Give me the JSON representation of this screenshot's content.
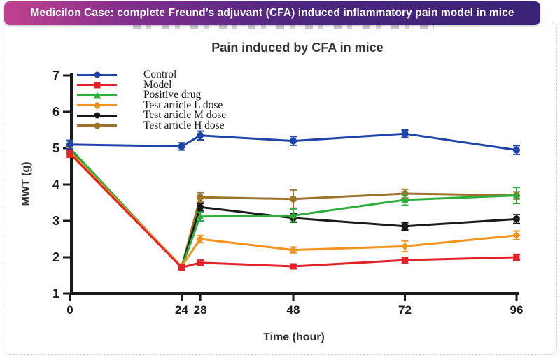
{
  "banner": {
    "title": "Medicilon Case: complete Freund’s adjuvant (CFA) induced inflammatory pain model in mice",
    "gradient_left": "#C2418F",
    "gradient_right": "#3A2374",
    "text_color": "#FFFFFF"
  },
  "chart_data": {
    "type": "line",
    "title": "Pain induced by CFA in mice",
    "xlabel": "Time (hour)",
    "ylabel": "MWT (g)",
    "x": [
      0,
      24,
      28,
      48,
      72,
      96
    ],
    "xticks": [
      0,
      24,
      28,
      48,
      72,
      96
    ],
    "yticks": [
      1,
      2,
      3,
      4,
      5,
      6,
      7
    ],
    "ylim": [
      1,
      7
    ],
    "xlim": [
      0,
      96
    ],
    "grid": false,
    "legend_position": "top-left",
    "error_bars": true,
    "axis_color": "#1A1A1A",
    "series": [
      {
        "name": "Control",
        "color": "#1F44A9",
        "marker": "circle",
        "values": [
          5.1,
          5.05,
          5.35,
          5.2,
          5.4,
          4.95
        ],
        "errors": [
          0.12,
          0.1,
          0.12,
          0.12,
          0.1,
          0.12
        ]
      },
      {
        "name": "Model",
        "color": "#E22128",
        "marker": "square",
        "values": [
          4.85,
          1.72,
          1.85,
          1.75,
          1.92,
          2.0
        ],
        "errors": [
          0.1,
          0.06,
          0.07,
          0.06,
          0.08,
          0.08
        ]
      },
      {
        "name": "Positive drug",
        "color": "#2EAE3C",
        "marker": "triangle",
        "values": [
          5.0,
          1.72,
          3.12,
          3.15,
          3.58,
          3.7
        ],
        "errors": [
          0.2,
          0.05,
          0.12,
          0.18,
          0.15,
          0.22
        ]
      },
      {
        "name": "Test article L dose",
        "color": "#F6921E",
        "marker": "diamond",
        "values": [
          4.9,
          1.75,
          2.5,
          2.2,
          2.3,
          2.6
        ],
        "errors": [
          0.1,
          0.05,
          0.1,
          0.08,
          0.15,
          0.12
        ]
      },
      {
        "name": "Test article M dose",
        "color": "#1A1A1A",
        "marker": "circle",
        "values": [
          4.95,
          1.72,
          3.38,
          3.08,
          2.85,
          3.05
        ],
        "errors": [
          0.1,
          0.05,
          0.1,
          0.12,
          0.1,
          0.12
        ]
      },
      {
        "name": "Test article H dose",
        "color": "#9E722A",
        "marker": "circle",
        "values": [
          4.95,
          1.72,
          3.65,
          3.6,
          3.75,
          3.7
        ],
        "errors": [
          0.1,
          0.05,
          0.13,
          0.25,
          0.12,
          0.1
        ]
      }
    ]
  }
}
